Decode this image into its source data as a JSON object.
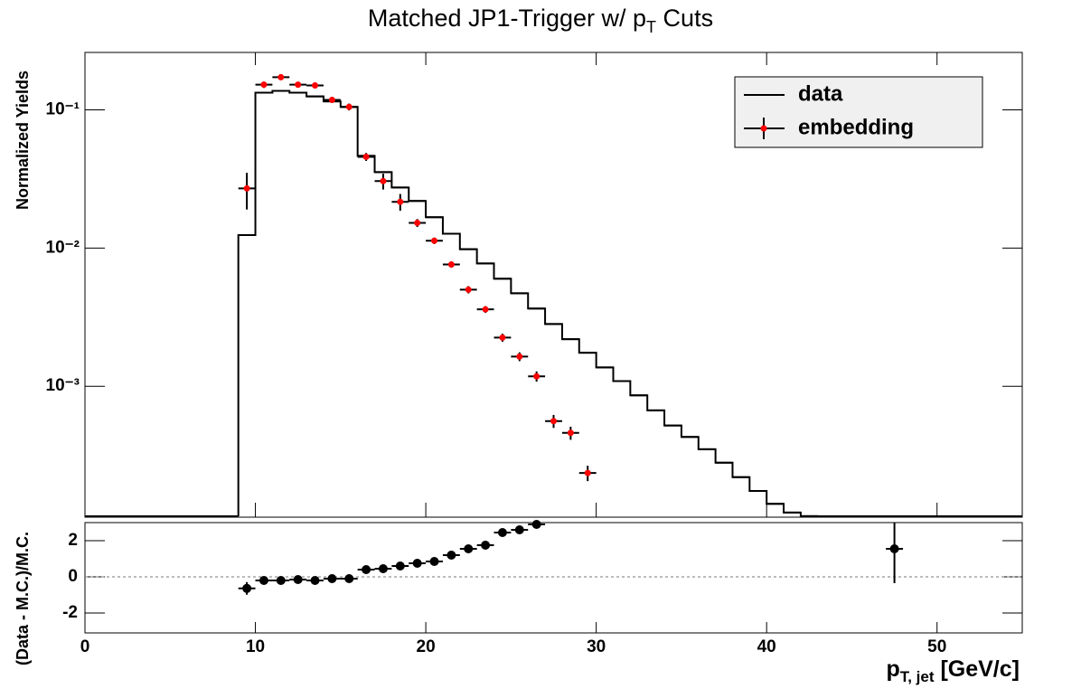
{
  "chart_data": [
    {
      "type": "step_log",
      "title": {
        "main": "Matched JP1-Trigger w/ p",
        "sub": "T",
        "rest": " Cuts"
      },
      "ylabel": "Normalized Yields",
      "log_y": true,
      "xlim": [
        0,
        55
      ],
      "ylim": [
        0.000113,
        0.26
      ],
      "yticks": [
        {
          "value": 0.001,
          "label": "10⁻³"
        },
        {
          "value": 0.01,
          "label": "10⁻²"
        },
        {
          "value": 0.1,
          "label": "10⁻¹"
        }
      ],
      "legend": "top-right",
      "series": [
        {
          "name": "data",
          "color": "#000000",
          "kind": "step",
          "bins": [
            9,
            10,
            11,
            12,
            13,
            14,
            15,
            16,
            17,
            18,
            19,
            20,
            21,
            22,
            23,
            24,
            25,
            26,
            27,
            28,
            29,
            30,
            31,
            32,
            33,
            34,
            35,
            36,
            37,
            38,
            39,
            40,
            41,
            42,
            43
          ],
          "values": [
            0.0124,
            0.133,
            0.137,
            0.133,
            0.125,
            0.115,
            0.105,
            0.0464,
            0.0354,
            0.0274,
            0.0219,
            0.0167,
            0.0127,
            0.0098,
            0.00774,
            0.006,
            0.00471,
            0.00365,
            0.00282,
            0.00219,
            0.00175,
            0.00137,
            0.00109,
            0.00086,
            0.00067,
            0.00052,
            0.00043,
            0.00035,
            0.00028,
            0.00022,
            0.000175,
            0.000141,
            0.000122,
            0.000115
          ]
        },
        {
          "name": "embedding",
          "color": "#ff0000",
          "kind": "points",
          "x": [
            9.5,
            10.5,
            11.5,
            12.5,
            13.5,
            14.5,
            15.5,
            16.5,
            17.5,
            18.5,
            19.5,
            20.5,
            21.5,
            22.5,
            23.5,
            24.5,
            25.5,
            26.5,
            27.5,
            28.5,
            29.5
          ],
          "xerr": 0.5,
          "values": [
            0.027,
            0.152,
            0.172,
            0.152,
            0.15,
            0.118,
            0.105,
            0.0457,
            0.0305,
            0.0216,
            0.0152,
            0.0113,
            0.0076,
            0.005,
            0.0036,
            0.00225,
            0.00164,
            0.00118,
            0.00056,
            0.00046,
            0.000236
          ],
          "errors": [
            0.008,
            0.008,
            0.008,
            0.007,
            0.007,
            0.006,
            0.006,
            0.003,
            0.004,
            0.003,
            0.001,
            0.0006,
            0.0004,
            0.0003,
            0.0002,
            0.00015,
            0.00012,
            0.0001,
            6e-05,
            5e-05,
            3e-05
          ]
        }
      ]
    },
    {
      "type": "ratio",
      "ylabel": "(Data - M.C.)/M.C.",
      "xlabel": {
        "main": "p",
        "sub": "T, jet",
        "rest": " [GeV/c]"
      },
      "xlim": [
        0,
        55
      ],
      "ylim": [
        -3.1,
        3
      ],
      "xticks": [
        0,
        10,
        20,
        30,
        40,
        50
      ],
      "yticks": [
        -2,
        0,
        2
      ],
      "ref_line": 0,
      "series": [
        {
          "color": "#000000",
          "x": [
            9.5,
            10.5,
            11.5,
            12.5,
            13.5,
            14.5,
            15.5,
            16.5,
            17.5,
            18.5,
            19.5,
            20.5,
            21.5,
            22.5,
            23.5,
            24.5,
            25.5,
            26.5,
            47.5
          ],
          "xerr": 0.5,
          "values": [
            -0.64,
            -0.2,
            -0.2,
            -0.15,
            -0.2,
            -0.1,
            -0.1,
            0.4,
            0.45,
            0.6,
            0.75,
            0.85,
            1.2,
            1.55,
            1.75,
            2.45,
            2.6,
            2.9,
            1.55
          ],
          "errors": [
            0.35,
            0.08,
            0.07,
            0.07,
            0.07,
            0.07,
            0.08,
            0.08,
            0.1,
            0.1,
            0.08,
            0.08,
            0.1,
            0.1,
            0.12,
            0.15,
            0.17,
            0.2,
            1.9
          ]
        }
      ]
    }
  ]
}
